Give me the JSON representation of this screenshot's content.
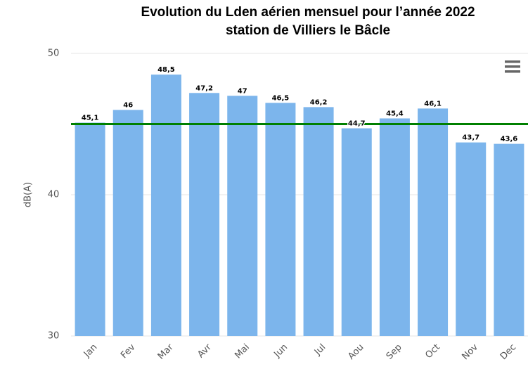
{
  "chart_data": {
    "type": "bar",
    "title": "Evolution du Lden aérien mensuel pour l’année 2022",
    "subtitle": "station de Villiers le Bâcle",
    "y_label": "dB(A)",
    "categories": [
      "Jan",
      "Fev",
      "Mar",
      "Avr",
      "Mai",
      "Jun",
      "Jul",
      "Aou",
      "Sep",
      "Oct",
      "Nov",
      "Dec"
    ],
    "values": [
      45.1,
      46,
      48.5,
      47.2,
      47,
      46.5,
      46.2,
      44.7,
      45.4,
      46.1,
      43.7,
      43.6
    ],
    "value_labels": [
      "45,1",
      "46",
      "48,5",
      "47,2",
      "47",
      "46,5",
      "46,2",
      "44,7",
      "45,4",
      "46,1",
      "43,7",
      "43,6"
    ],
    "color": "#7cb5ec",
    "reference_line": {
      "value": 45,
      "color": "#008000"
    },
    "ylim": [
      30,
      50
    ],
    "yticks": [
      30,
      40,
      50
    ],
    "grid": true
  }
}
